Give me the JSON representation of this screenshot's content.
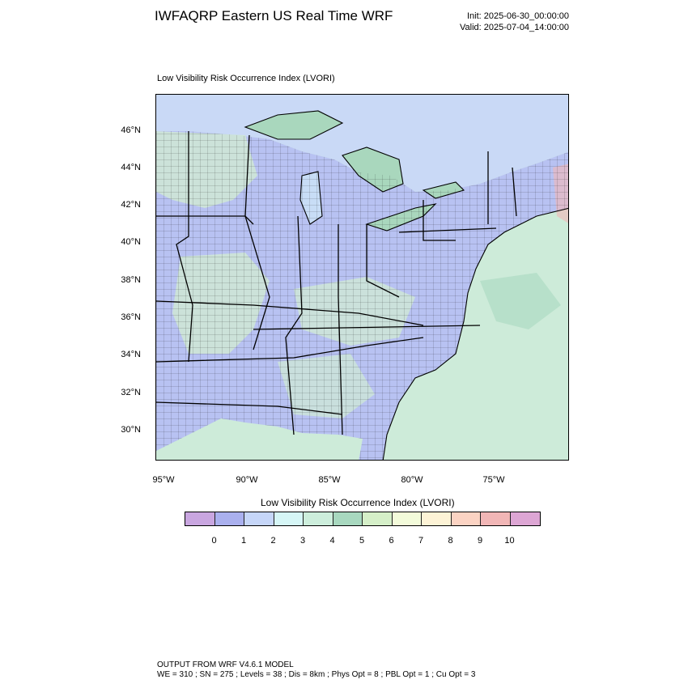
{
  "header": {
    "title": "IWFAQRP Eastern US Real Time WRF",
    "init": "Init: 2025-06-30_00:00:00",
    "valid": "Valid: 2025-07-04_14:00:00"
  },
  "map": {
    "subtitle": "Low Visibility Risk Occurrence Index   (LVORI)",
    "lat_labels": [
      "46°N",
      "44°N",
      "42°N",
      "40°N",
      "38°N",
      "36°N",
      "34°N",
      "32°N",
      "30°N"
    ],
    "lon_labels": [
      "95°W",
      "90°W",
      "85°W",
      "80°W",
      "75°W"
    ],
    "colors": {
      "land_dominant": "#b8c2f2",
      "land_secondary": "#cfe8d5",
      "lake": "#c8ddf6",
      "ocean": "#cdebd9",
      "canada": "#c9d9f6",
      "border": "#000000"
    }
  },
  "colorbar": {
    "title": "Low Visibility Risk Occurrence Index  (LVORI)",
    "labels": [
      "0",
      "1",
      "2",
      "3",
      "4",
      "5",
      "6",
      "7",
      "8",
      "9",
      "10"
    ],
    "colors": [
      "#c9a6e0",
      "#aab0ee",
      "#c6d6f8",
      "#d6f6f6",
      "#cdeedc",
      "#a8d8bf",
      "#d5efc8",
      "#f3fbda",
      "#fdf3d6",
      "#fbd3c3",
      "#f1b6b6",
      "#dda6d4"
    ]
  },
  "footer": {
    "line1": "OUTPUT FROM WRF V4.6.1 MODEL",
    "line2": "WE = 310 ; SN = 275 ; Levels = 38 ; Dis = 8km ; Phys Opt = 8 ; PBL Opt = 1 ; Cu Opt = 3"
  }
}
